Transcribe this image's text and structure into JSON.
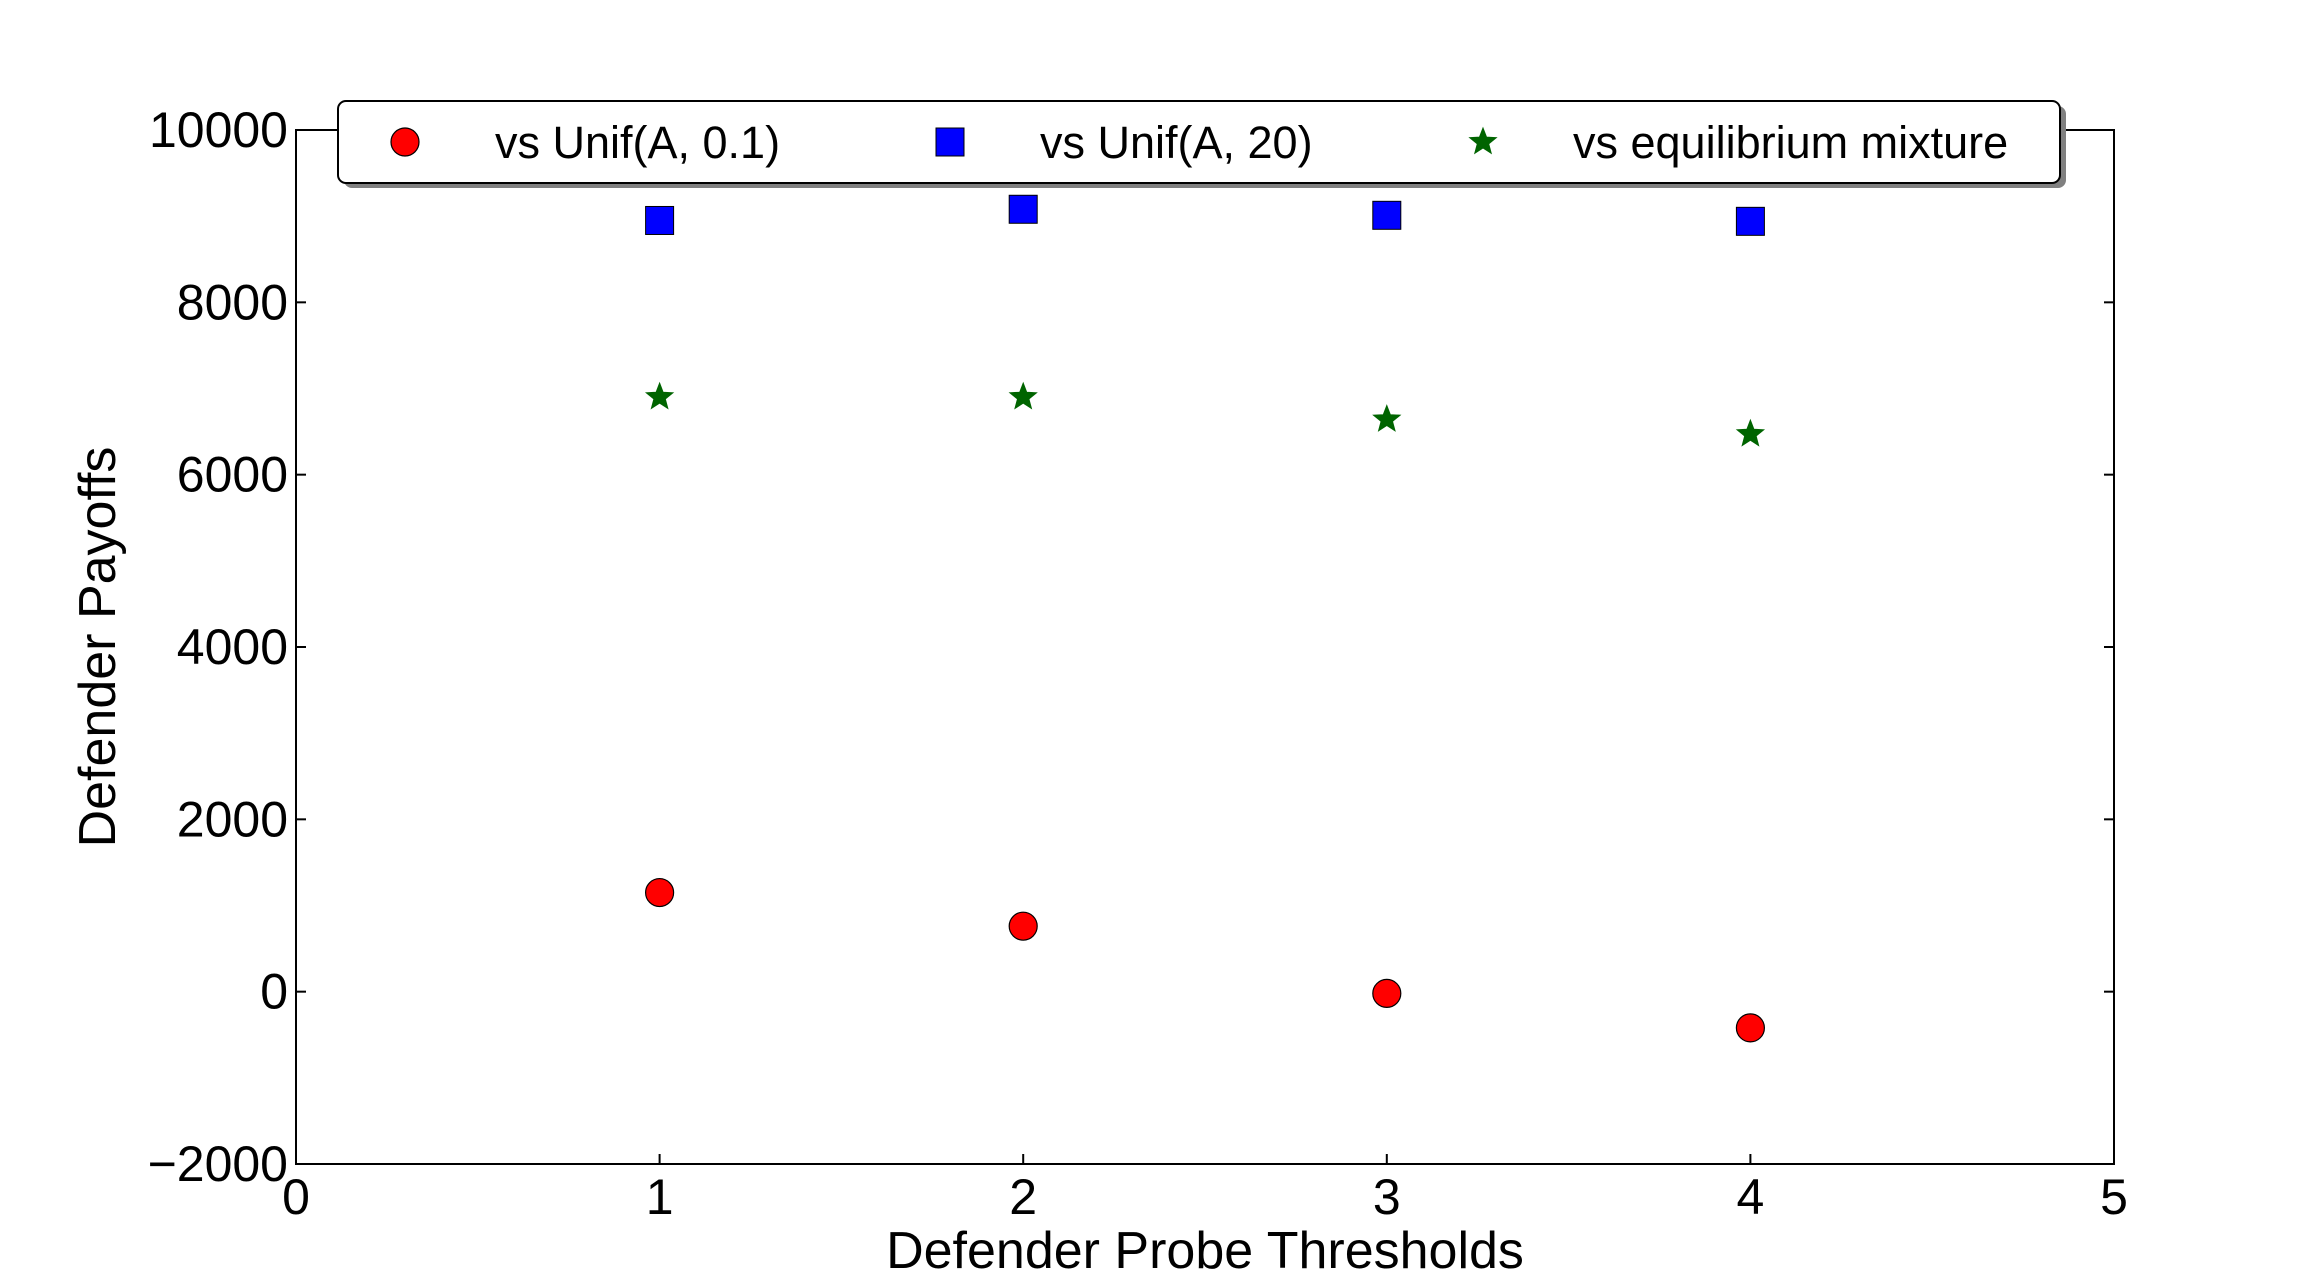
{
  "chart_data": {
    "type": "scatter",
    "title": "",
    "xlabel": "Defender Probe Thresholds",
    "ylabel": "Defender Payoffs",
    "xlim": [
      0,
      5
    ],
    "ylim": [
      -2000,
      10000
    ],
    "xticks": [
      0,
      1,
      2,
      3,
      4,
      5
    ],
    "yticks": [
      -2000,
      0,
      2000,
      4000,
      6000,
      8000,
      10000
    ],
    "xtick_labels": [
      "0",
      "1",
      "2",
      "3",
      "4",
      "5"
    ],
    "ytick_labels": [
      "−2000",
      "0",
      "2000",
      "4000",
      "6000",
      "8000",
      "10000"
    ],
    "grid": false,
    "legend_position": "top-center",
    "series": [
      {
        "name": "vs Unif(A, 0.1)",
        "marker": "circle",
        "color": "#ff0000",
        "x": [
          1,
          2,
          3,
          4
        ],
        "y": [
          1150,
          760,
          -20,
          -420
        ]
      },
      {
        "name": "vs Unif(A, 20)",
        "marker": "square",
        "color": "#0000ff",
        "x": [
          1,
          2,
          3,
          4
        ],
        "y": [
          8950,
          9080,
          9010,
          8940
        ]
      },
      {
        "name": "vs equilibrium mixture",
        "marker": "star",
        "color": "#006400",
        "x": [
          1,
          2,
          3,
          4
        ],
        "y": [
          6900,
          6900,
          6640,
          6470
        ]
      }
    ]
  }
}
